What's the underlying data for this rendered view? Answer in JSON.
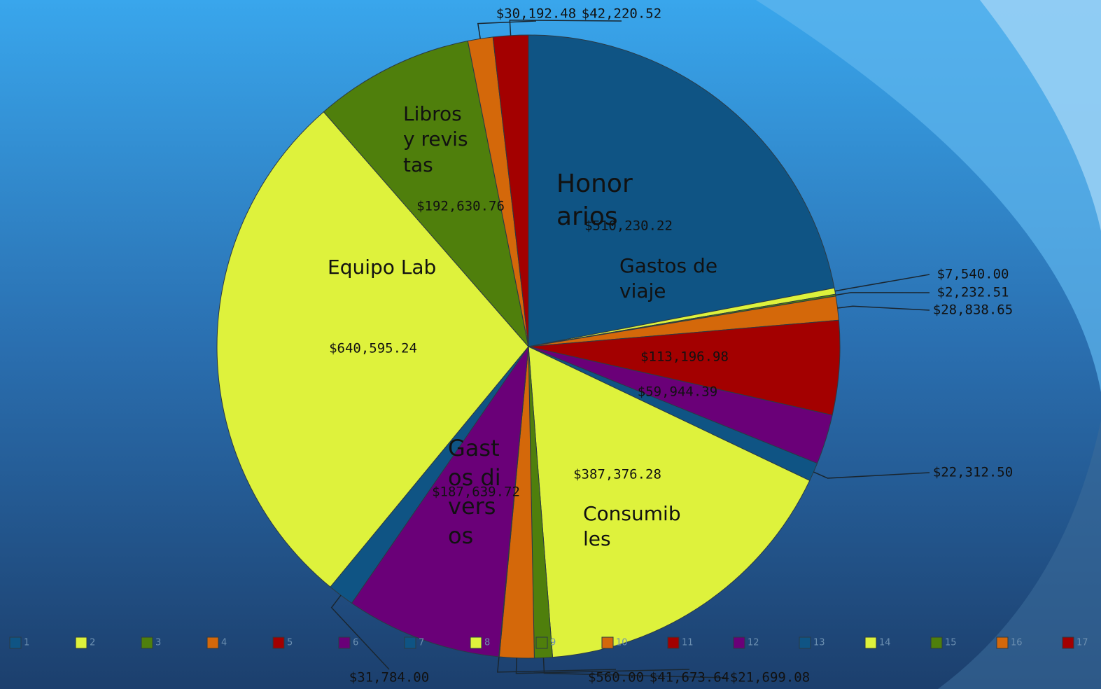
{
  "chart_data": {
    "type": "pie",
    "categories": [
      "1",
      "2",
      "3",
      "4",
      "5",
      "6",
      "7",
      "8",
      "9",
      "10",
      "11",
      "12",
      "13",
      "14",
      "15",
      "16",
      "17"
    ],
    "values": [
      510230.22,
      7540.0,
      2232.51,
      28838.65,
      113196.98,
      59944.39,
      22312.5,
      387376.28,
      21699.08,
      41673.64,
      560.0,
      187639.72,
      31784.0,
      640595.24,
      192630.76,
      30192.48,
      42220.52
    ],
    "value_labels": [
      "$510,230.22",
      "$7,540.00",
      "$2,232.51",
      "$28,838.65",
      "$113,196.98",
      "$59,944.39",
      "$22,312.50",
      "$387,376.28",
      "$21,699.08",
      "$41,673.64",
      "$560.00",
      "$187,639.72",
      "$31,784.00",
      "$640,595.24",
      "$192,630.76",
      "$30,192.48",
      "$42,220.52"
    ],
    "labels": [
      "Honorarios",
      "Gastos de viaje",
      null,
      null,
      null,
      null,
      null,
      "Consumibles",
      null,
      null,
      null,
      "Gastos diversos",
      null,
      "Equipo Lab",
      "Libros y revistas",
      null,
      null
    ],
    "colors": [
      "#0f5484",
      "#def23c",
      "#4f7f0c",
      "#d4680a",
      "#a30000",
      "#6a0078",
      "#0f5484",
      "#def23c",
      "#4f7f0c",
      "#d4680a",
      "#a30000",
      "#6a0078",
      "#0f5484",
      "#def23c",
      "#4f7f0c",
      "#d4680a",
      "#a30000"
    ],
    "legend": "bottom"
  }
}
